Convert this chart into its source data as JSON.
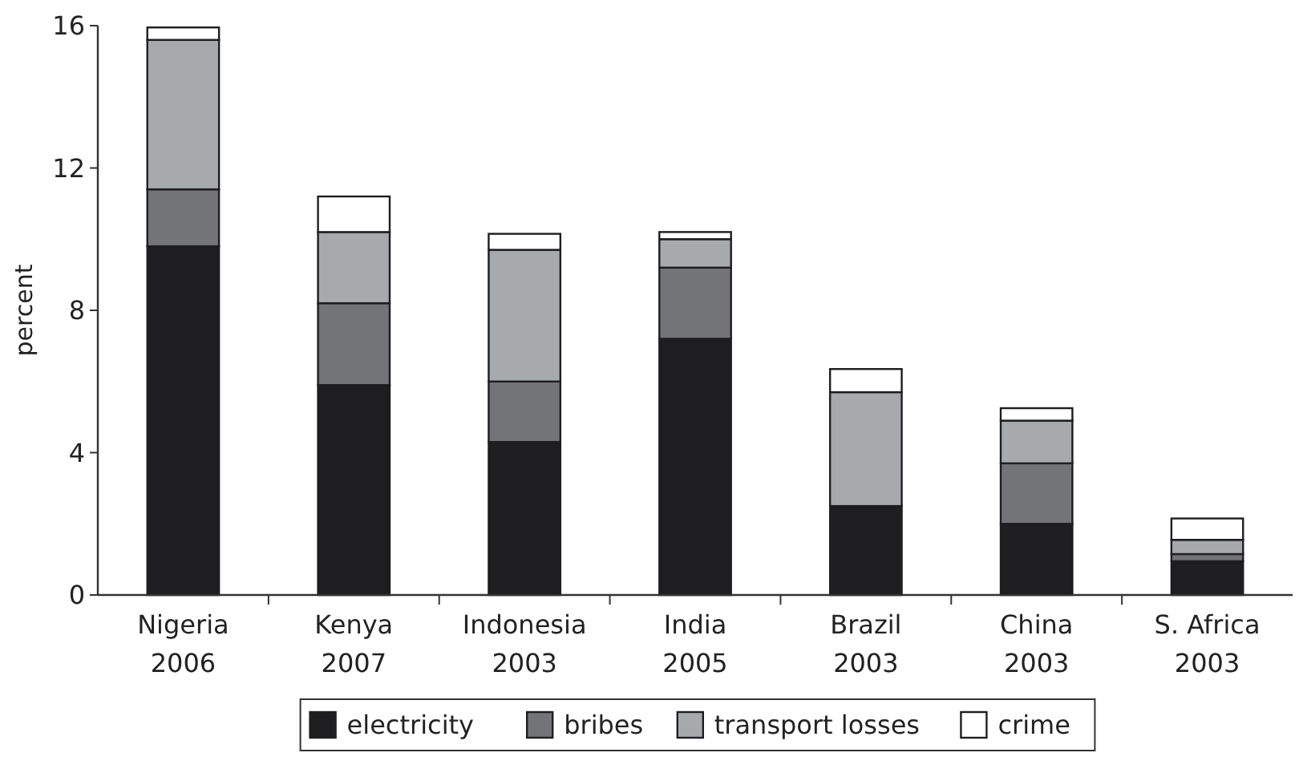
{
  "chart_data": {
    "type": "bar",
    "stacked": true,
    "ylabel": "percent",
    "categories": [
      "Nigeria\n2006",
      "Kenya\n2007",
      "Indonesia\n2003",
      "India\n2005",
      "Brazil\n2003",
      "China\n2003",
      "S. Africa\n2003"
    ],
    "series": [
      {
        "name": "electricity",
        "color": "#1e1e21",
        "values": [
          9.8,
          5.9,
          4.3,
          7.2,
          2.5,
          2.0,
          0.95
        ]
      },
      {
        "name": "bribes",
        "color": "#737477",
        "values": [
          1.6,
          2.3,
          1.7,
          2.0,
          0,
          1.7,
          0.2
        ]
      },
      {
        "name": "transport losses",
        "color": "#a7aaad",
        "values": [
          4.2,
          2.0,
          3.7,
          0.8,
          3.2,
          1.2,
          0.4
        ]
      },
      {
        "name": "crime",
        "color": "#ffffff",
        "values": [
          0.35,
          1.0,
          0.45,
          0.2,
          0.65,
          0.35,
          0.6
        ]
      }
    ],
    "ylim": [
      0,
      16
    ],
    "yticks": [
      0,
      4,
      8,
      12,
      16
    ],
    "grid": false,
    "legend": "bottom"
  }
}
